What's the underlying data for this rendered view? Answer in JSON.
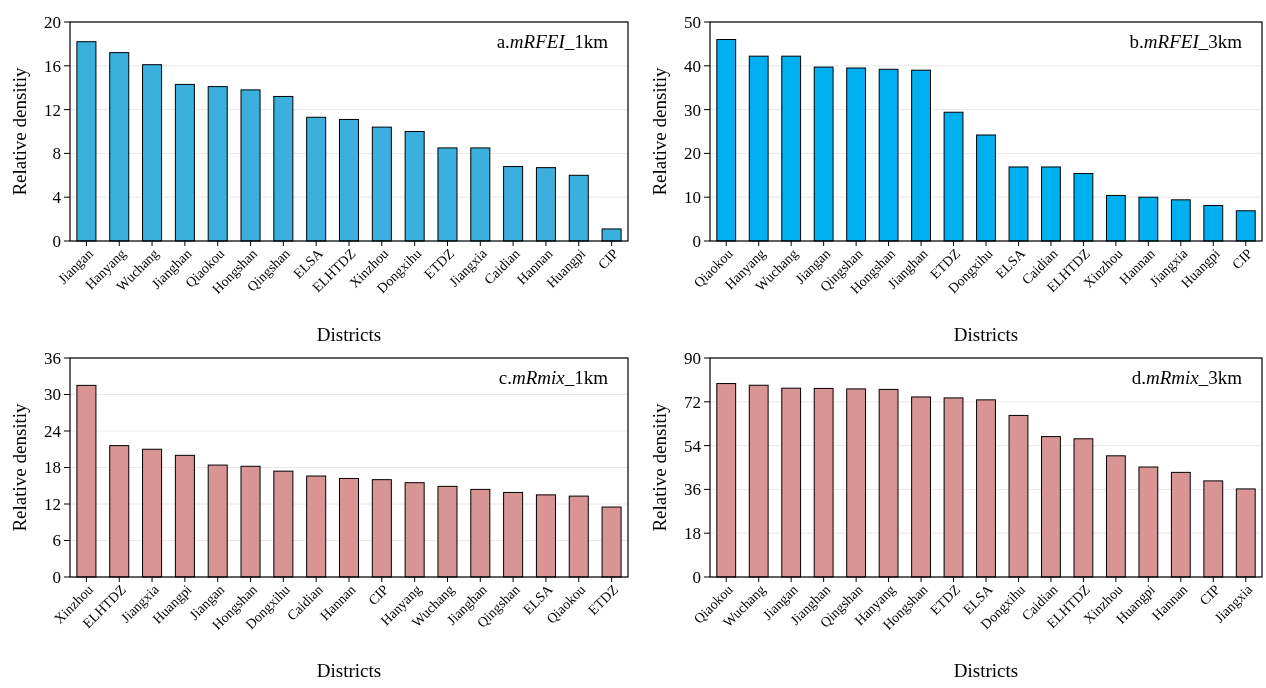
{
  "chart_data": [
    {
      "type": "bar",
      "title": "a.mRFEI_1km",
      "xlabel": "Districts",
      "ylabel": "Relative densitiy",
      "categories": [
        "Jiangan",
        "Hanyang",
        "Wuchang",
        "Jianghan",
        "Qiaokou",
        "Hongshan",
        "Qingshan",
        "ELSA",
        "ELHTDZ",
        "Xinzhou",
        "Dongxihu",
        "ETDZ",
        "Jiangxia",
        "Caidian",
        "Hannan",
        "Huangpi",
        "CIP"
      ],
      "values": [
        18.2,
        17.2,
        16.1,
        14.3,
        14.1,
        13.8,
        13.2,
        11.3,
        11.1,
        10.4,
        10.0,
        8.5,
        8.5,
        6.8,
        6.7,
        6.0,
        1.1
      ],
      "color": "#3bb0de",
      "ylim": [
        0,
        20
      ],
      "yticks": [
        0,
        4,
        8,
        12,
        16,
        20
      ],
      "grid": "y"
    },
    {
      "type": "bar",
      "title": "b.mRFEI_3km",
      "xlabel": "Districts",
      "ylabel": "Relative densitiy",
      "categories": [
        "Qiaokou",
        "Hanyang",
        "Wuchang",
        "Jiangan",
        "Qingshan",
        "Hongshan",
        "Jianghan",
        "ETDZ",
        "Dongxihu",
        "ELSA",
        "Caidian",
        "ELHTDZ",
        "Xinzhou",
        "Hannan",
        "Jiangxia",
        "Huangpi",
        "CIP"
      ],
      "values": [
        46,
        42.2,
        42.2,
        39.7,
        39.5,
        39.2,
        39.0,
        29.4,
        24.2,
        16.9,
        16.9,
        15.4,
        10.4,
        10.0,
        9.4,
        8.1,
        6.9
      ],
      "color": "#00b0f0",
      "ylim": [
        0,
        50
      ],
      "yticks": [
        0,
        10,
        20,
        30,
        40,
        50
      ],
      "grid": "y"
    },
    {
      "type": "bar",
      "title": "c.mRmix_1km",
      "xlabel": "Districts",
      "ylabel": "Relative densitiy",
      "categories": [
        "Xinzhou",
        "ELHTDZ",
        "Jiangxia",
        "Huangpi",
        "Jiangan",
        "Hongshan",
        "Dongxihu",
        "Caidian",
        "Hannan",
        "CIP",
        "Hanyang",
        "Wuchang",
        "Jianghan",
        "Qingshan",
        "ELSA",
        "Qiaokou",
        "ETDZ"
      ],
      "values": [
        31.5,
        21.6,
        21.0,
        20.0,
        18.4,
        18.2,
        17.4,
        16.6,
        16.2,
        16.0,
        15.5,
        14.9,
        14.4,
        13.9,
        13.5,
        13.3,
        11.5
      ],
      "color": "#d99594",
      "ylim": [
        0,
        36
      ],
      "yticks": [
        0,
        6,
        12,
        18,
        24,
        30,
        36
      ],
      "grid": "y"
    },
    {
      "type": "bar",
      "title": "d.mRmix_3km",
      "xlabel": "Districts",
      "ylabel": "Relative densitiy",
      "categories": [
        "Qiaokou",
        "Wuchang",
        "Jiangan",
        "Jianghan",
        "Qingshan",
        "Hanyang",
        "Hongshan",
        "ETDZ",
        "ELSA",
        "Dongxihu",
        "Caidian",
        "ELHTDZ",
        "Xinzhou",
        "Huangpi",
        "Hannan",
        "CIP",
        "Jiangxia"
      ],
      "values": [
        79.5,
        78.8,
        77.6,
        77.5,
        77.3,
        77.1,
        74.0,
        73.6,
        72.8,
        66.4,
        57.7,
        56.8,
        49.8,
        45.2,
        43.0,
        39.5,
        36.2
      ],
      "color": "#d99594",
      "ylim": [
        0,
        90
      ],
      "yticks": [
        0,
        18,
        36,
        54,
        72,
        90
      ],
      "grid": "y"
    }
  ]
}
